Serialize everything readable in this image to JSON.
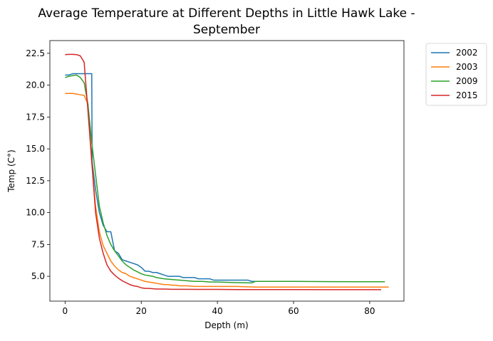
{
  "chart_data": {
    "type": "line",
    "title_lines": [
      "Average Temperature at Different Depths in Little Hawk Lake -",
      "September"
    ],
    "xlabel": "Depth (m)",
    "ylabel": "Temp (C°)",
    "xlim": [
      -4,
      89
    ],
    "ylim": [
      3.05,
      23.5
    ],
    "xticks": [
      0,
      20,
      40,
      60,
      80
    ],
    "xtick_labels": [
      "0",
      "20",
      "40",
      "60",
      "80"
    ],
    "yticks": [
      5.0,
      7.5,
      10.0,
      12.5,
      15.0,
      17.5,
      20.0,
      22.5
    ],
    "ytick_labels": [
      "5.0",
      "7.5",
      "10.0",
      "12.5",
      "15.0",
      "17.5",
      "20.0",
      "22.5"
    ],
    "legend_position": "outside-upper-right",
    "grid": false,
    "series": [
      {
        "name": "2002",
        "color": "#1f77b4",
        "x": [
          0,
          1,
          2,
          3,
          4,
          5,
          6,
          7,
          7.1,
          8,
          9,
          10,
          11,
          12,
          13,
          14,
          15,
          16,
          17,
          18,
          19,
          20,
          21,
          22,
          23,
          24,
          25,
          26,
          27,
          28,
          29,
          30,
          31,
          32,
          33,
          34,
          35,
          36,
          37,
          38,
          39,
          40,
          45,
          48,
          49,
          50
        ],
        "y": [
          20.8,
          20.8,
          20.9,
          20.9,
          20.9,
          20.9,
          20.9,
          20.9,
          14.0,
          11.8,
          10.0,
          9.0,
          8.5,
          8.5,
          7.0,
          6.8,
          6.3,
          6.2,
          6.1,
          6.0,
          5.9,
          5.7,
          5.4,
          5.4,
          5.3,
          5.3,
          5.2,
          5.1,
          5.0,
          5.0,
          5.0,
          5.0,
          4.9,
          4.9,
          4.9,
          4.9,
          4.8,
          4.8,
          4.8,
          4.8,
          4.7,
          4.7,
          4.7,
          4.7,
          4.6,
          4.6
        ]
      },
      {
        "name": "2003",
        "color": "#ff7f0e",
        "x": [
          0,
          1,
          2,
          3,
          4,
          5,
          6,
          7,
          8,
          9,
          10,
          11,
          12,
          13,
          14,
          15,
          16,
          17,
          18,
          19,
          20,
          21,
          22,
          23,
          24,
          25,
          26,
          27,
          28,
          29,
          30,
          32,
          34,
          36,
          38,
          40,
          45,
          50,
          55,
          60,
          70,
          80,
          85
        ],
        "y": [
          19.35,
          19.35,
          19.35,
          19.3,
          19.25,
          19.2,
          18.5,
          14.0,
          10.5,
          8.5,
          7.4,
          6.8,
          6.2,
          5.8,
          5.5,
          5.3,
          5.2,
          5.0,
          4.9,
          4.8,
          4.7,
          4.6,
          4.55,
          4.5,
          4.45,
          4.4,
          4.35,
          4.35,
          4.3,
          4.3,
          4.25,
          4.25,
          4.2,
          4.2,
          4.2,
          4.2,
          4.2,
          4.15,
          4.15,
          4.15,
          4.15,
          4.15,
          4.15
        ]
      },
      {
        "name": "2009",
        "color": "#2ca02c",
        "x": [
          0,
          1,
          2,
          3,
          4,
          5,
          6,
          7,
          8,
          9,
          10,
          11,
          12,
          13,
          14,
          15,
          16,
          17,
          18,
          19,
          20,
          21,
          22,
          23,
          24,
          25,
          26,
          28,
          30,
          32,
          34,
          36,
          38,
          40,
          45,
          49,
          50,
          55,
          60,
          70,
          80,
          84
        ],
        "y": [
          20.6,
          20.7,
          20.75,
          20.8,
          20.6,
          20.2,
          18.5,
          15.5,
          13.0,
          10.5,
          9.2,
          8.2,
          7.5,
          7.0,
          6.6,
          6.2,
          5.9,
          5.7,
          5.5,
          5.35,
          5.2,
          5.1,
          5.05,
          5.0,
          4.9,
          4.85,
          4.8,
          4.75,
          4.7,
          4.65,
          4.6,
          4.6,
          4.55,
          4.55,
          4.5,
          4.48,
          4.6,
          4.6,
          4.6,
          4.58,
          4.57,
          4.57
        ]
      },
      {
        "name": "2015",
        "color": "#d62728",
        "x": [
          0,
          1,
          2,
          3,
          4,
          5,
          6,
          7,
          8,
          9,
          10,
          11,
          12,
          13,
          14,
          15,
          16,
          17,
          18,
          19,
          20,
          21,
          22,
          24,
          26,
          28,
          30,
          35,
          40,
          45,
          50,
          55,
          60,
          70,
          80,
          83
        ],
        "y": [
          22.4,
          22.42,
          22.42,
          22.4,
          22.3,
          21.8,
          18.0,
          14.0,
          10.0,
          8.0,
          6.8,
          5.9,
          5.4,
          5.1,
          4.85,
          4.65,
          4.5,
          4.35,
          4.25,
          4.2,
          4.1,
          4.05,
          4.05,
          4.0,
          4.0,
          3.98,
          3.98,
          3.97,
          3.97,
          3.96,
          3.96,
          3.96,
          3.96,
          3.95,
          3.95,
          3.95
        ]
      }
    ]
  }
}
